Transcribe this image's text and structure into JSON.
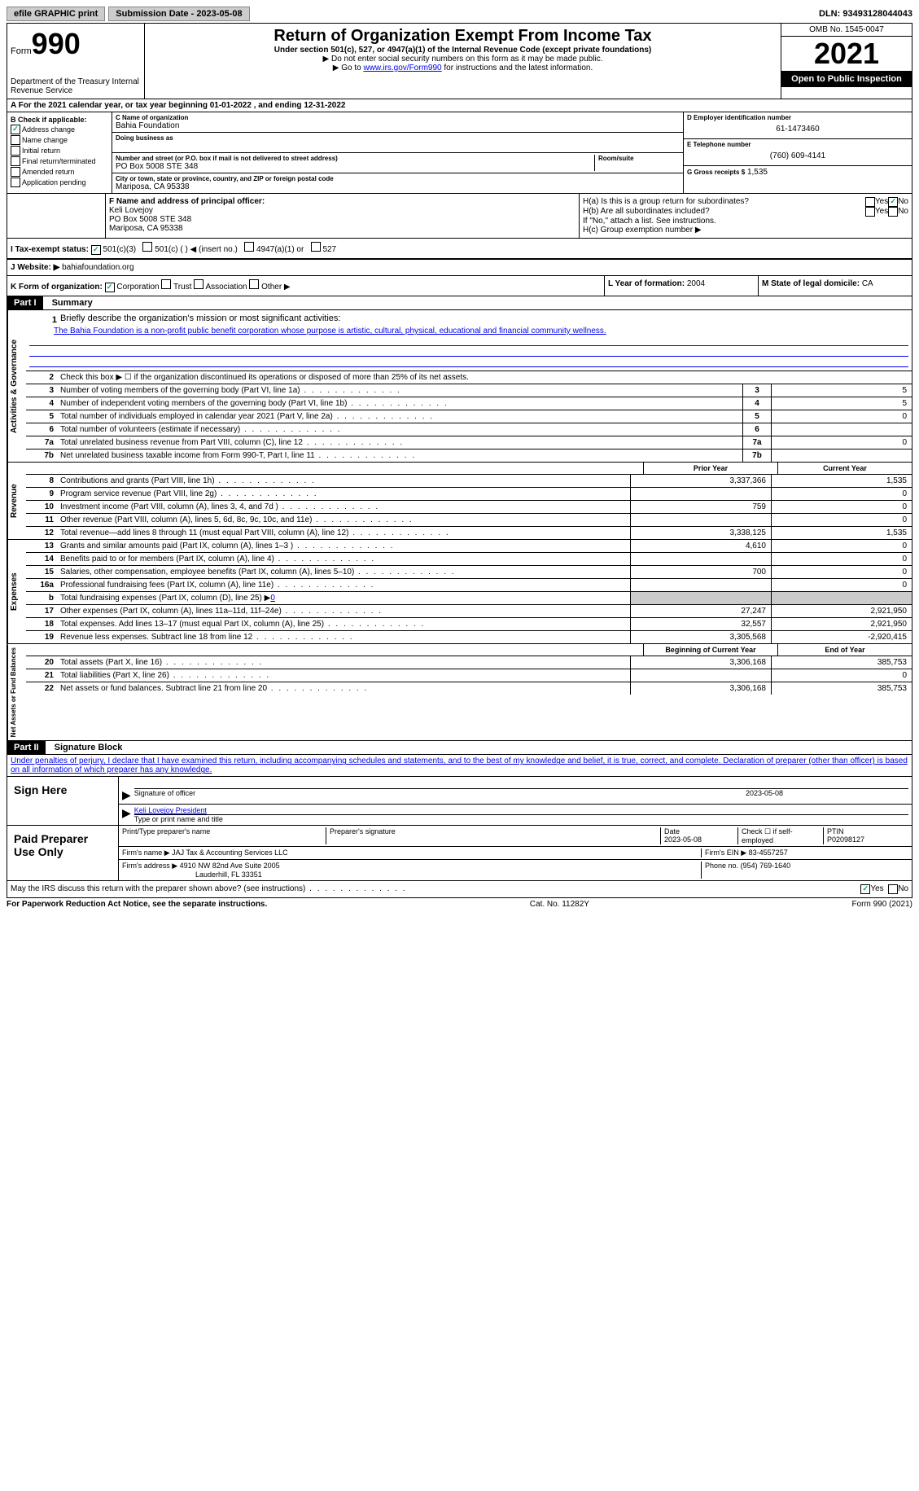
{
  "topbar": {
    "efile": "efile GRAPHIC print",
    "submission": "Submission Date - 2023-05-08",
    "dln": "DLN: 93493128044043"
  },
  "header": {
    "form_label": "Form",
    "form_num": "990",
    "title": "Return of Organization Exempt From Income Tax",
    "subtitle": "Under section 501(c), 527, or 4947(a)(1) of the Internal Revenue Code (except private foundations)",
    "note1": "▶ Do not enter social security numbers on this form as it may be made public.",
    "note2_pre": "▶ Go to ",
    "note2_link": "www.irs.gov/Form990",
    "note2_post": " for instructions and the latest information.",
    "dept": "Department of the Treasury Internal Revenue Service",
    "omb": "OMB No. 1545-0047",
    "year": "2021",
    "open": "Open to Public Inspection"
  },
  "sectionA": "A For the 2021 calendar year, or tax year beginning 01-01-2022   , and ending 12-31-2022",
  "sectionB": {
    "label": "B Check if applicable:",
    "items": [
      "Address change",
      "Name change",
      "Initial return",
      "Final return/terminated",
      "Amended return",
      "Application pending"
    ],
    "checked": [
      true,
      false,
      false,
      false,
      false,
      false
    ]
  },
  "sectionC": {
    "name_label": "C Name of organization",
    "name": "Bahia Foundation",
    "dba_label": "Doing business as",
    "addr_label": "Number and street (or P.O. box if mail is not delivered to street address)",
    "addr": "PO Box 5008 STE 348",
    "room_label": "Room/suite",
    "city_label": "City or town, state or province, country, and ZIP or foreign postal code",
    "city": "Mariposa, CA  95338"
  },
  "sectionD": {
    "ein_label": "D Employer identification number",
    "ein": "61-1473460",
    "phone_label": "E Telephone number",
    "phone": "(760) 609-4141",
    "gross_label": "G Gross receipts $",
    "gross": "1,535"
  },
  "sectionF": {
    "label": "F  Name and address of principal officer:",
    "name": "Keli Lovejoy",
    "addr1": "PO Box 5008 STE 348",
    "addr2": "Mariposa, CA  95338"
  },
  "sectionH": {
    "a": "H(a)  Is this is a group return for subordinates?",
    "b": "H(b)  Are all subordinates included?",
    "note": "If \"No,\" attach a list. See instructions.",
    "c": "H(c)  Group exemption number ▶"
  },
  "sectionI": {
    "label": "I  Tax-exempt status:",
    "opts": [
      "501(c)(3)",
      "501(c) (  ) ◀ (insert no.)",
      "4947(a)(1) or",
      "527"
    ]
  },
  "sectionJ": {
    "label": "J  Website: ▶",
    "val": "bahiafoundation.org"
  },
  "sectionK": {
    "label": "K Form of organization:",
    "opts": [
      "Corporation",
      "Trust",
      "Association",
      "Other ▶"
    ]
  },
  "sectionL": {
    "label": "L Year of formation:",
    "val": "2004"
  },
  "sectionM": {
    "label": "M State of legal domicile:",
    "val": "CA"
  },
  "part1": {
    "header": "Part I",
    "title": "Summary",
    "line1_label": "Briefly describe the organization's mission or most significant activities:",
    "line1_text": "The Bahia Foundation is a non-profit public benefit corporation whose purpose is artistic, cultural, physical, educational and financial community wellness.",
    "line2": "Check this box ▶ ☐ if the organization discontinued its operations or disposed of more than 25% of its net assets.",
    "governance": [
      {
        "n": "3",
        "t": "Number of voting members of the governing body (Part VI, line 1a)",
        "v": "5"
      },
      {
        "n": "4",
        "t": "Number of independent voting members of the governing body (Part VI, line 1b)",
        "v": "5"
      },
      {
        "n": "5",
        "t": "Total number of individuals employed in calendar year 2021 (Part V, line 2a)",
        "v": "0"
      },
      {
        "n": "6",
        "t": "Total number of volunteers (estimate if necessary)",
        "v": ""
      },
      {
        "n": "7a",
        "t": "Total unrelated business revenue from Part VIII, column (C), line 12",
        "v": "0"
      },
      {
        "n": "7b",
        "t": "Net unrelated business taxable income from Form 990-T, Part I, line 11",
        "v": ""
      }
    ],
    "col_prior": "Prior Year",
    "col_current": "Current Year",
    "revenue": [
      {
        "n": "8",
        "t": "Contributions and grants (Part VIII, line 1h)",
        "p": "3,337,366",
        "c": "1,535"
      },
      {
        "n": "9",
        "t": "Program service revenue (Part VIII, line 2g)",
        "p": "",
        "c": "0"
      },
      {
        "n": "10",
        "t": "Investment income (Part VIII, column (A), lines 3, 4, and 7d )",
        "p": "759",
        "c": "0"
      },
      {
        "n": "11",
        "t": "Other revenue (Part VIII, column (A), lines 5, 6d, 8c, 9c, 10c, and 11e)",
        "p": "",
        "c": "0"
      },
      {
        "n": "12",
        "t": "Total revenue—add lines 8 through 11 (must equal Part VIII, column (A), line 12)",
        "p": "3,338,125",
        "c": "1,535"
      }
    ],
    "expenses": [
      {
        "n": "13",
        "t": "Grants and similar amounts paid (Part IX, column (A), lines 1–3 )",
        "p": "4,610",
        "c": "0"
      },
      {
        "n": "14",
        "t": "Benefits paid to or for members (Part IX, column (A), line 4)",
        "p": "",
        "c": "0"
      },
      {
        "n": "15",
        "t": "Salaries, other compensation, employee benefits (Part IX, column (A), lines 5–10)",
        "p": "700",
        "c": "0"
      },
      {
        "n": "16a",
        "t": "Professional fundraising fees (Part IX, column (A), line 11e)",
        "p": "",
        "c": "0"
      },
      {
        "n": "b",
        "t": "Total fundraising expenses (Part IX, column (D), line 25) ▶",
        "fund": "0"
      },
      {
        "n": "17",
        "t": "Other expenses (Part IX, column (A), lines 11a–11d, 11f–24e)",
        "p": "27,247",
        "c": "2,921,950"
      },
      {
        "n": "18",
        "t": "Total expenses. Add lines 13–17 (must equal Part IX, column (A), line 25)",
        "p": "32,557",
        "c": "2,921,950"
      },
      {
        "n": "19",
        "t": "Revenue less expenses. Subtract line 18 from line 12",
        "p": "3,305,568",
        "c": "-2,920,415"
      }
    ],
    "col_begin": "Beginning of Current Year",
    "col_end": "End of Year",
    "netassets": [
      {
        "n": "20",
        "t": "Total assets (Part X, line 16)",
        "p": "3,306,168",
        "c": "385,753"
      },
      {
        "n": "21",
        "t": "Total liabilities (Part X, line 26)",
        "p": "",
        "c": "0"
      },
      {
        "n": "22",
        "t": "Net assets or fund balances. Subtract line 21 from line 20",
        "p": "3,306,168",
        "c": "385,753"
      }
    ],
    "vlabels": {
      "gov": "Activities & Governance",
      "rev": "Revenue",
      "exp": "Expenses",
      "net": "Net Assets or Fund Balances"
    }
  },
  "part2": {
    "header": "Part II",
    "title": "Signature Block",
    "decl": "Under penalties of perjury, I declare that I have examined this return, including accompanying schedules and statements, and to the best of my knowledge and belief, it is true, correct, and complete. Declaration of preparer (other than officer) is based on all information of which preparer has any knowledge.",
    "sign_here": "Sign Here",
    "sig_officer": "Signature of officer",
    "sig_date": "2023-05-08",
    "sig_name": "Keli Lovejoy  President",
    "sig_name_label": "Type or print name and title",
    "paid": "Paid Preparer Use Only",
    "prep_name_label": "Print/Type preparer's name",
    "prep_sig_label": "Preparer's signature",
    "prep_date_label": "Date",
    "prep_date": "2023-05-08",
    "prep_check": "Check ☐ if self-employed",
    "ptin_label": "PTIN",
    "ptin": "P02098127",
    "firm_name_label": "Firm's name    ▶",
    "firm_name": "JAJ Tax & Accounting Services LLC",
    "firm_ein_label": "Firm's EIN ▶",
    "firm_ein": "83-4557257",
    "firm_addr_label": "Firm's address ▶",
    "firm_addr1": "4910 NW 82nd Ave Suite 2005",
    "firm_addr2": "Lauderhill, FL  33351",
    "firm_phone_label": "Phone no.",
    "firm_phone": "(954) 769-1640",
    "discuss": "May the IRS discuss this return with the preparer shown above? (see instructions)"
  },
  "footer": {
    "left": "For Paperwork Reduction Act Notice, see the separate instructions.",
    "center": "Cat. No. 11282Y",
    "right": "Form 990 (2021)"
  }
}
